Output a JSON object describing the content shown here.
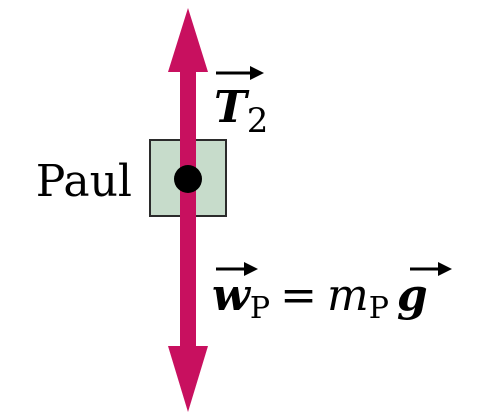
{
  "diagram": {
    "type": "free-body-diagram",
    "body_label": "Paul",
    "tension_force": {
      "symbol": "T",
      "subscript": "2",
      "direction": "up"
    },
    "weight_force": {
      "symbol": "w",
      "subscript": "P",
      "equals": "=",
      "mass_symbol": "m",
      "mass_subscript": "P",
      "gravity_symbol": "g",
      "direction": "down"
    }
  },
  "colors": {
    "force_arrow": "#c8105f",
    "box_fill": "#c7dccb",
    "box_stroke": "#2b2b2b",
    "dot": "#000000",
    "text": "#000000"
  }
}
